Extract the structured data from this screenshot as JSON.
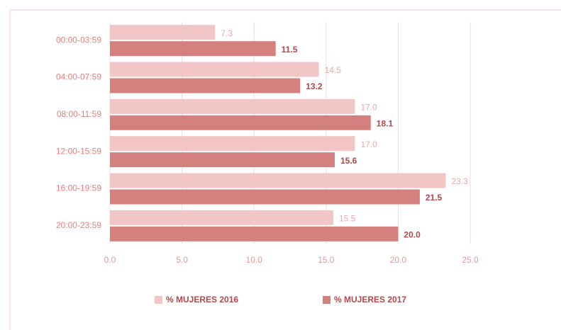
{
  "chart_data": {
    "type": "bar",
    "orientation": "horizontal",
    "categories": [
      "00:00-03:59",
      "04:00-07:59",
      "08:00-11:59",
      "12:00-15:59",
      "16:00-19:59",
      "20:00-23:59"
    ],
    "series": [
      {
        "name": "% MUJERES 2016",
        "color": "#f2c6c6",
        "values": [
          7.3,
          14.5,
          17.0,
          17.0,
          23.3,
          15.5
        ],
        "value_labels": [
          "7.3",
          "14.5",
          "17.0",
          "17.0",
          "23.3",
          "15.5"
        ]
      },
      {
        "name": "% MUJERES 2017",
        "color": "#d4807f",
        "values": [
          11.5,
          13.2,
          18.1,
          15.6,
          21.5,
          20.0
        ],
        "value_labels": [
          "11.5",
          "13.2",
          "18.1",
          "15.6",
          "21.5",
          "20.0"
        ]
      }
    ],
    "xlim": [
      0,
      25
    ],
    "xticks": [
      {
        "value": 0,
        "label": "0.0"
      },
      {
        "value": 5,
        "label": "5.0"
      },
      {
        "value": 10,
        "label": "10.0"
      },
      {
        "value": 15,
        "label": "15.0"
      },
      {
        "value": 20,
        "label": "20.0"
      },
      {
        "value": 25,
        "label": "25.0"
      }
    ],
    "grid": true,
    "legend": "bottom"
  }
}
